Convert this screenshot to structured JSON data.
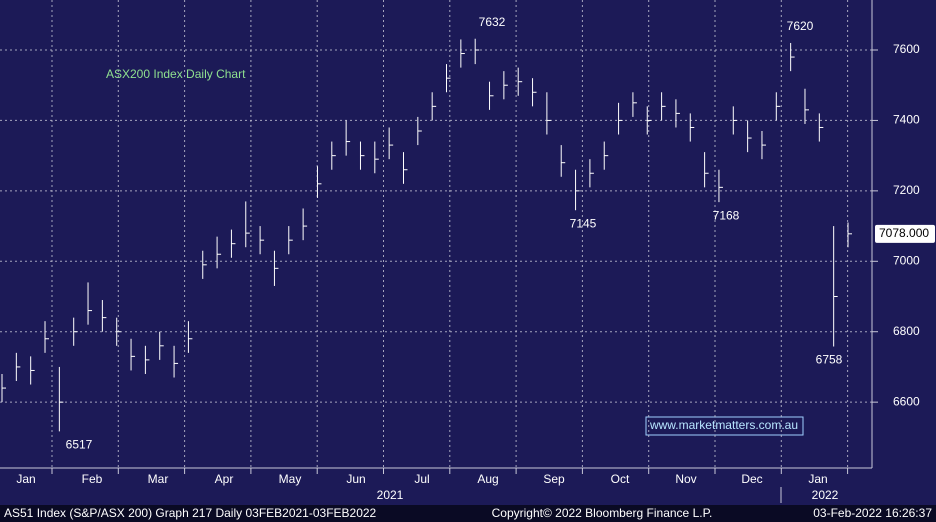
{
  "chart_data": {
    "type": "ohlc",
    "title": "ASX200 Index Daily Chart",
    "watermark": "www.marketmatters.com.au",
    "series": [
      {
        "name": "AS51 Index",
        "color": "#ffffff",
        "high": [
          6680,
          6740,
          6730,
          6830,
          6700,
          6840,
          6940,
          6890,
          6840,
          6780,
          6760,
          6800,
          6760,
          6830,
          7030,
          7070,
          7090,
          7170,
          7100,
          7030,
          7100,
          7150,
          7270,
          7340,
          7400,
          7340,
          7340,
          7380,
          7310,
          7410,
          7480,
          7560,
          7630,
          7632,
          7510,
          7540,
          7550,
          7520,
          7480,
          7330,
          7260,
          7290,
          7340,
          7450,
          7480,
          7440,
          7480,
          7460,
          7420,
          7310,
          7260,
          7440,
          7400,
          7370,
          7480,
          7620,
          7490,
          7420,
          7100,
          7110
        ],
        "low": [
          6600,
          6660,
          6650,
          6740,
          6517,
          6760,
          6820,
          6800,
          6760,
          6690,
          6680,
          6720,
          6670,
          6740,
          6950,
          6980,
          7010,
          7040,
          7020,
          6930,
          7020,
          7060,
          7180,
          7260,
          7300,
          7260,
          7250,
          7290,
          7220,
          7330,
          7400,
          7480,
          7550,
          7560,
          7430,
          7460,
          7470,
          7440,
          7360,
          7240,
          7145,
          7210,
          7260,
          7360,
          7410,
          7360,
          7400,
          7380,
          7340,
          7210,
          7168,
          7360,
          7310,
          7290,
          7400,
          7540,
          7390,
          7340,
          6758,
          7040
        ],
        "close": [
          6640,
          6700,
          6690,
          6780,
          6600,
          6800,
          6860,
          6840,
          6800,
          6730,
          6720,
          6760,
          6710,
          6780,
          6990,
          7020,
          7050,
          7080,
          7060,
          6980,
          7060,
          7100,
          7220,
          7300,
          7340,
          7300,
          7290,
          7330,
          7260,
          7370,
          7440,
          7520,
          7590,
          7600,
          7470,
          7500,
          7510,
          7480,
          7400,
          7280,
          7200,
          7250,
          7300,
          7400,
          7450,
          7400,
          7440,
          7420,
          7380,
          7250,
          7210,
          7400,
          7350,
          7330,
          7440,
          7580,
          7430,
          7380,
          6900,
          7078
        ]
      }
    ],
    "months": [
      "Jan",
      "Feb",
      "Mar",
      "Apr",
      "May",
      "Jun",
      "Jul",
      "Aug",
      "Sep",
      "Oct",
      "Nov",
      "Dec",
      "Jan"
    ],
    "years": [
      "2021",
      "2022"
    ],
    "annotations": [
      {
        "value": 7632
      },
      {
        "value": 7620
      },
      {
        "value": 7145
      },
      {
        "value": 7168
      },
      {
        "value": 6517
      },
      {
        "value": 6758
      }
    ],
    "last_price": {
      "value": 7078,
      "label": "7078.000"
    },
    "ylim": [
      6413,
      7742
    ],
    "yticks": [
      6600,
      6800,
      7000,
      7200,
      7400,
      7600
    ],
    "grid": true,
    "footer": {
      "left": "AS51 Index (S&P/ASX 200) Graph 217  Daily 03FEB2021-03FEB2022",
      "center": "Copyright© 2022 Bloomberg Finance L.P.",
      "right": "03-Feb-2022 16:26:37"
    }
  }
}
